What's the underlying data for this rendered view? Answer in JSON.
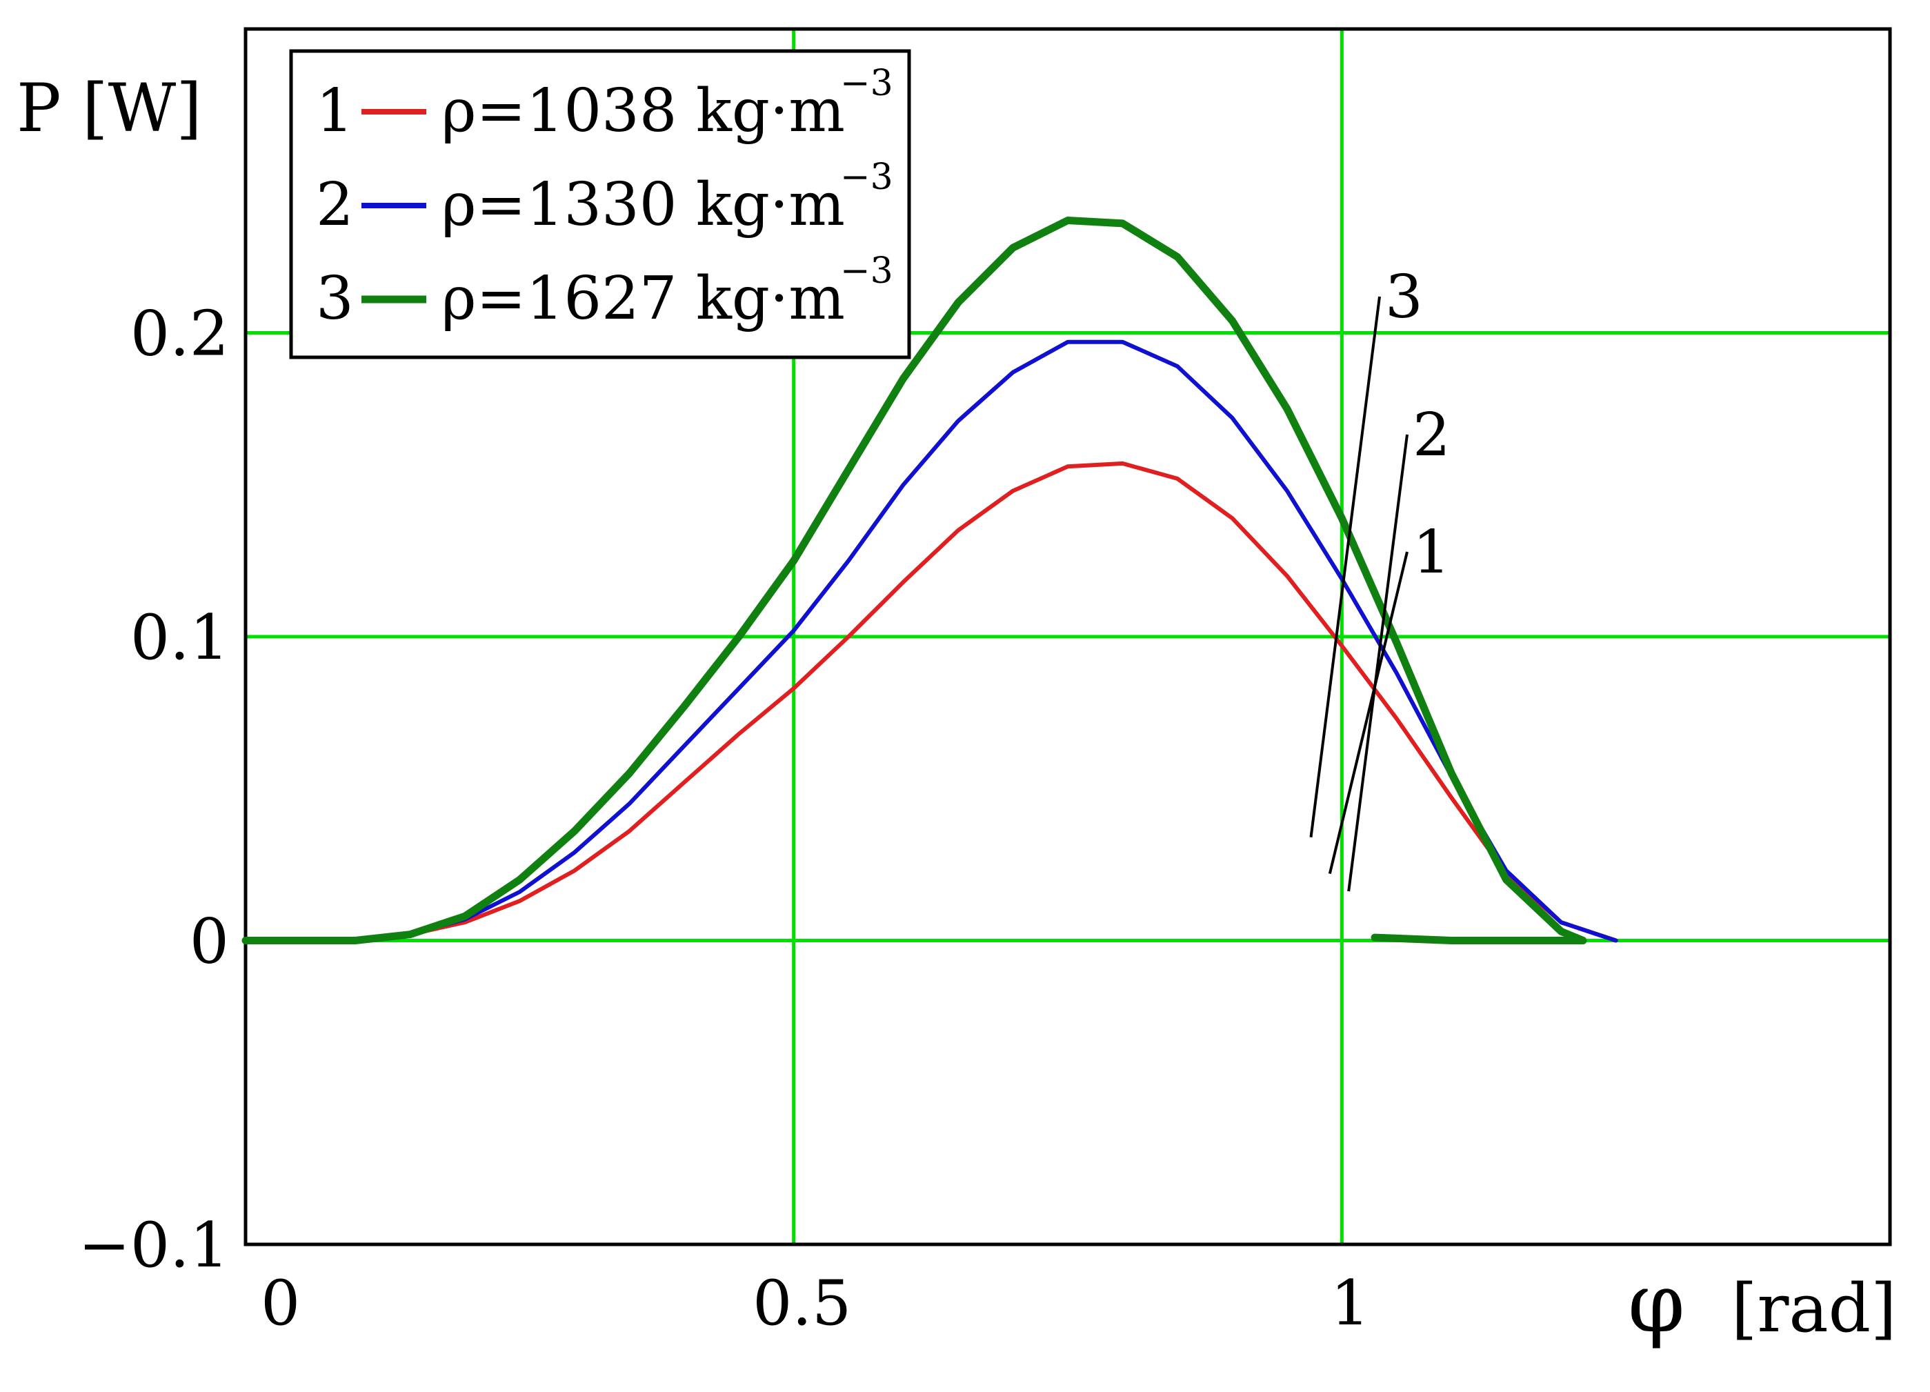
{
  "chart_data": {
    "type": "line",
    "title": "",
    "ylabel": "P [W]",
    "xlabel_symbol": "φ",
    "xlabel_unit": "[rad]",
    "xlim": [
      0,
      1.5
    ],
    "ylim": [
      -0.1,
      0.3
    ],
    "xticks": [
      0,
      0.5,
      1
    ],
    "xtick_labels": [
      "0",
      "0.5",
      "1"
    ],
    "yticks": [
      -0.1,
      0,
      0.1,
      0.2
    ],
    "ytick_labels": [
      "−0.1",
      "0",
      "0.1",
      "0.2"
    ],
    "grid": true,
    "legend_position": "top-left",
    "colors": {
      "grid": "#00e000",
      "series1": "#e02020",
      "series2": "#1010d0",
      "series3": "#108010"
    },
    "series": [
      {
        "id": "1",
        "name": "ρ=1038 kg·m",
        "exponent": "−3",
        "color": "#e02020",
        "x": [
          0,
          0.1,
          0.15,
          0.2,
          0.25,
          0.3,
          0.35,
          0.4,
          0.45,
          0.5,
          0.55,
          0.6,
          0.65,
          0.7,
          0.75,
          0.8,
          0.85,
          0.9,
          0.95,
          1.0,
          1.05,
          1.1,
          1.15,
          1.2,
          1.25
        ],
        "y": [
          0,
          0,
          0.002,
          0.006,
          0.013,
          0.023,
          0.036,
          0.052,
          0.068,
          0.083,
          0.1,
          0.118,
          0.135,
          0.148,
          0.156,
          0.157,
          0.152,
          0.139,
          0.12,
          0.097,
          0.073,
          0.047,
          0.022,
          0.006,
          0
        ],
        "label_at": 1.15
      },
      {
        "id": "2",
        "name": "ρ=1330 kg·m",
        "exponent": "−3",
        "color": "#1010d0",
        "x": [
          0,
          0.1,
          0.15,
          0.2,
          0.25,
          0.3,
          0.35,
          0.4,
          0.45,
          0.5,
          0.55,
          0.6,
          0.65,
          0.7,
          0.75,
          0.8,
          0.85,
          0.9,
          0.95,
          1.0,
          1.05,
          1.1,
          1.15,
          1.2,
          1.25
        ],
        "y": [
          0,
          0,
          0.002,
          0.007,
          0.016,
          0.029,
          0.045,
          0.064,
          0.083,
          0.102,
          0.125,
          0.15,
          0.171,
          0.187,
          0.197,
          0.197,
          0.189,
          0.172,
          0.148,
          0.119,
          0.088,
          0.054,
          0.023,
          0.006,
          0
        ],
        "label_at": 1.17
      },
      {
        "id": "3",
        "name": "ρ=1627 kg·m",
        "exponent": "−3",
        "color": "#108010",
        "x": [
          0,
          0.1,
          0.15,
          0.2,
          0.25,
          0.3,
          0.35,
          0.4,
          0.45,
          0.5,
          0.55,
          0.6,
          0.65,
          0.7,
          0.75,
          0.8,
          0.85,
          0.9,
          0.95,
          1.0,
          1.05,
          1.1,
          1.15,
          1.2,
          1.22,
          1.1,
          1.03
        ],
        "y": [
          0,
          0,
          0.002,
          0.008,
          0.02,
          0.036,
          0.055,
          0.077,
          0.1,
          0.125,
          0.155,
          0.185,
          0.21,
          0.228,
          0.237,
          0.236,
          0.225,
          0.204,
          0.175,
          0.139,
          0.098,
          0.055,
          0.02,
          0.003,
          0,
          0,
          0.001
        ],
        "label_at": 1.13
      }
    ]
  }
}
